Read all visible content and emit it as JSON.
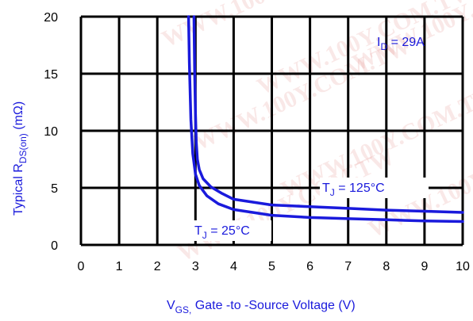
{
  "chart_data": {
    "type": "line",
    "title": "",
    "xlabel": {
      "main": "V",
      "sub": "GS,",
      "rest": " Gate -to -Source Voltage  (V)"
    },
    "ylabel": {
      "main": "Typical R",
      "sub": "DS(on)",
      "rest": " (mΩ)"
    },
    "xlim": [
      0,
      10
    ],
    "ylim": [
      0,
      20
    ],
    "x_ticks": [
      "0",
      "1",
      "2",
      "3",
      "4",
      "5",
      "6",
      "7",
      "8",
      "9",
      "10"
    ],
    "y_ticks": [
      "0",
      "5",
      "10",
      "15",
      "20"
    ],
    "grid": true,
    "series": [
      {
        "name": "T_J = 25°C",
        "x": [
          2.82,
          2.84,
          2.88,
          2.93,
          3.0,
          3.1,
          3.3,
          3.6,
          4.0,
          5.0,
          6.0,
          7.0,
          8.0,
          9.0,
          10.0
        ],
        "y": [
          20.0,
          16.0,
          11.0,
          8.0,
          6.2,
          5.2,
          4.3,
          3.6,
          3.1,
          2.6,
          2.4,
          2.3,
          2.2,
          2.1,
          2.05
        ]
      },
      {
        "name": "T_J = 125°C",
        "x": [
          2.96,
          2.98,
          3.0,
          3.02,
          3.05,
          3.1,
          3.2,
          3.4,
          3.7,
          4.0,
          5.0,
          6.0,
          7.0,
          8.0,
          9.0,
          10.0
        ],
        "y": [
          20.0,
          15.0,
          11.5,
          9.0,
          7.5,
          6.6,
          5.8,
          5.1,
          4.5,
          4.0,
          3.5,
          3.35,
          3.2,
          3.05,
          2.95,
          2.85
        ]
      }
    ],
    "annotations": [
      {
        "main": "I",
        "sub": "D",
        "rest": " = 29A"
      },
      {
        "main": "T",
        "sub": "J",
        "rest": " = 125°C"
      },
      {
        "main": "T",
        "sub": "J",
        "rest": " = 25°C"
      }
    ],
    "watermark": "WWW.100Y.COM.TW",
    "colors": {
      "curve": "#1a1adc",
      "grid": "#000000",
      "label": "#1a1adc",
      "watermark": "#d9534f"
    }
  }
}
